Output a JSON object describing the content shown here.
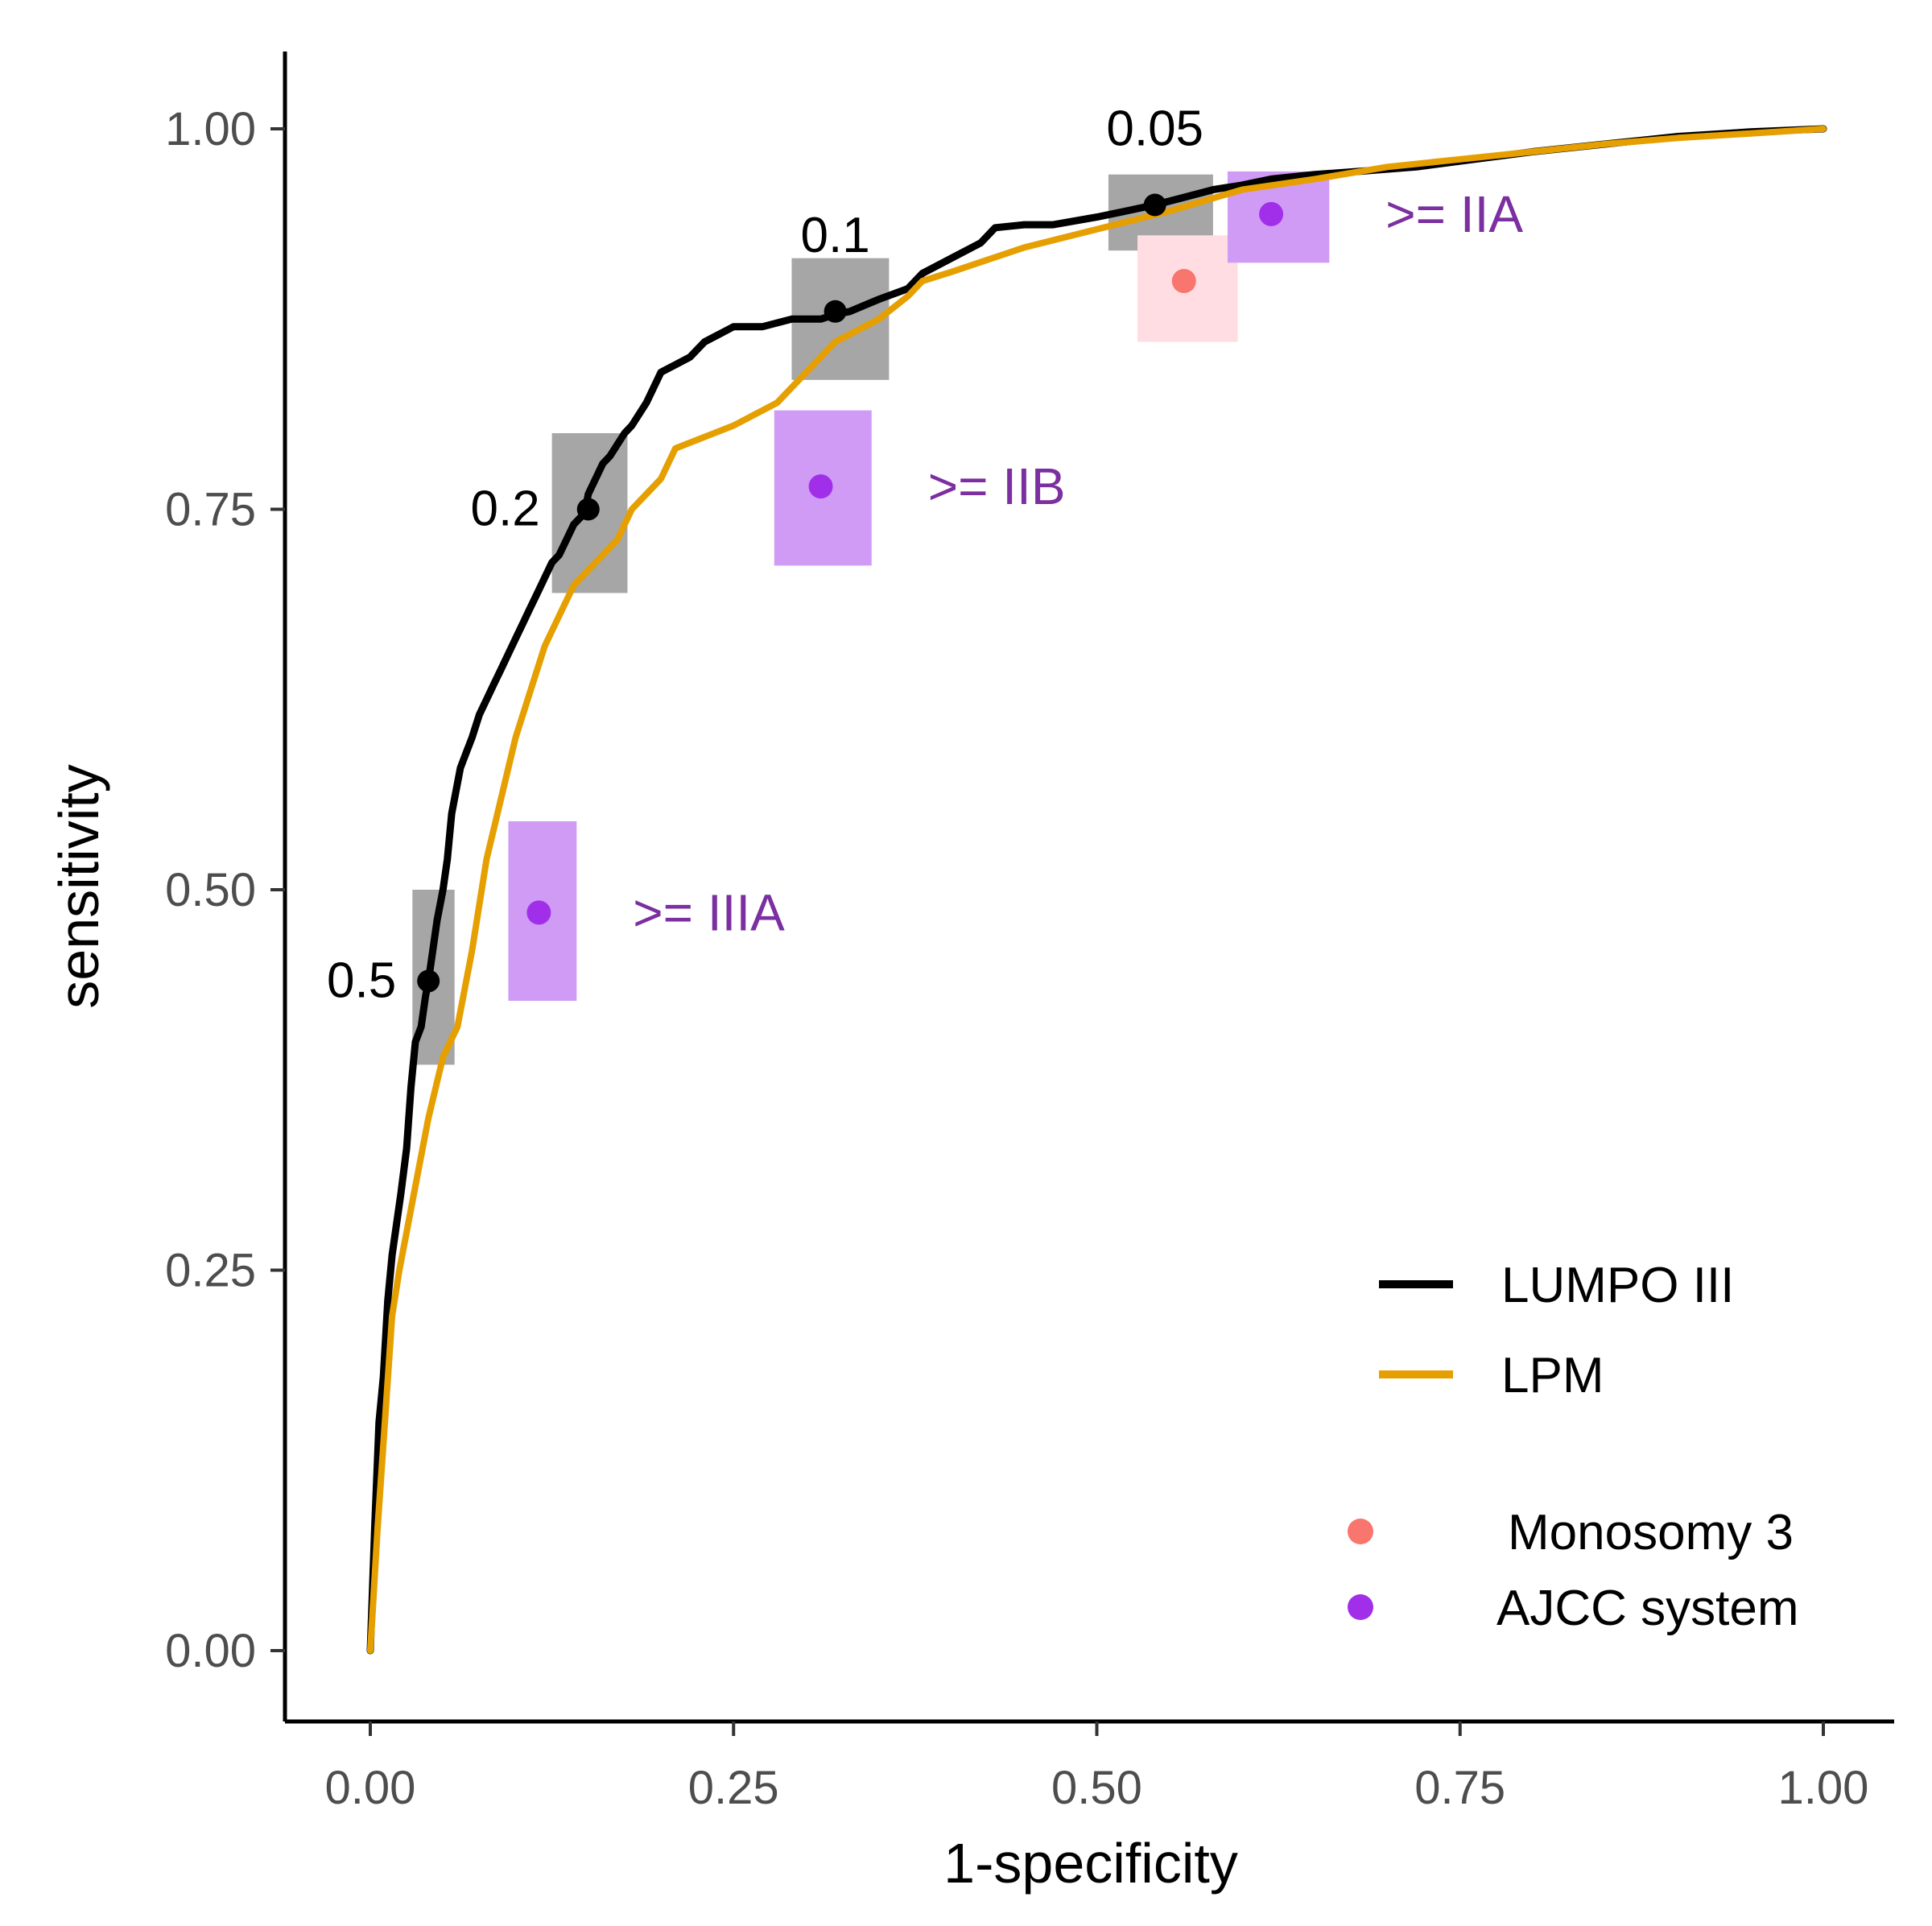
{
  "chart_data": {
    "type": "line",
    "xlabel": "1-specificity",
    "ylabel": "sensitivity",
    "xlim": [
      -0.058,
      1.05
    ],
    "ylim": [
      -0.05,
      1.05
    ],
    "x_ticks": [
      0.0,
      0.25,
      0.5,
      0.75,
      1.0
    ],
    "x_tick_labels": [
      "0.00",
      "0.25",
      "0.50",
      "0.75",
      "1.00"
    ],
    "y_ticks": [
      0.0,
      0.25,
      0.5,
      0.75,
      1.0
    ],
    "y_tick_labels": [
      "0.00",
      "0.25",
      "0.50",
      "0.75",
      "1.00"
    ],
    "colors": {
      "lumpo": "#000000",
      "lpm": "#E69F00",
      "monosomy": "#F8766D",
      "monosomy_box": "#FFDDE3",
      "ajcc": "#A12FEA",
      "ajcc_box": "#D09BF5",
      "ajcc_text": "#7B2FA0",
      "threshold_box": "#A6A6A6"
    },
    "series": [
      {
        "name": "LUMPO III",
        "x": [
          0.0,
          0.003,
          0.006,
          0.009,
          0.012,
          0.015,
          0.018,
          0.021,
          0.025,
          0.028,
          0.031,
          0.035,
          0.038,
          0.04,
          0.043,
          0.046,
          0.05,
          0.053,
          0.056,
          0.06,
          0.062,
          0.066,
          0.07,
          0.075,
          0.08,
          0.085,
          0.09,
          0.095,
          0.1,
          0.105,
          0.11,
          0.115,
          0.12,
          0.125,
          0.13,
          0.135,
          0.14,
          0.145,
          0.148,
          0.15,
          0.155,
          0.16,
          0.165,
          0.175,
          0.18,
          0.19,
          0.2,
          0.21,
          0.22,
          0.23,
          0.24,
          0.25,
          0.27,
          0.29,
          0.31,
          0.32,
          0.33,
          0.35,
          0.37,
          0.38,
          0.4,
          0.42,
          0.43,
          0.45,
          0.47,
          0.5,
          0.52,
          0.54,
          0.56,
          0.58,
          0.6,
          0.62,
          0.65,
          0.68,
          0.72,
          0.76,
          0.8,
          0.85,
          0.9,
          0.95,
          1.0
        ],
        "y": [
          0.0,
          0.08,
          0.15,
          0.18,
          0.23,
          0.26,
          0.28,
          0.3,
          0.33,
          0.37,
          0.4,
          0.41,
          0.43,
          0.44,
          0.46,
          0.48,
          0.5,
          0.52,
          0.55,
          0.57,
          0.58,
          0.59,
          0.6,
          0.615,
          0.625,
          0.635,
          0.645,
          0.655,
          0.665,
          0.675,
          0.685,
          0.695,
          0.705,
          0.715,
          0.72,
          0.73,
          0.74,
          0.745,
          0.75,
          0.76,
          0.77,
          0.78,
          0.785,
          0.8,
          0.805,
          0.82,
          0.84,
          0.845,
          0.85,
          0.86,
          0.865,
          0.87,
          0.87,
          0.875,
          0.875,
          0.878,
          0.88,
          0.888,
          0.895,
          0.905,
          0.915,
          0.925,
          0.935,
          0.937,
          0.937,
          0.942,
          0.946,
          0.95,
          0.955,
          0.96,
          0.963,
          0.967,
          0.97,
          0.972,
          0.975,
          0.98,
          0.985,
          0.99,
          0.995,
          0.998,
          1.0
        ]
      },
      {
        "name": "LPM",
        "x": [
          0.0,
          0.005,
          0.01,
          0.015,
          0.02,
          0.03,
          0.04,
          0.05,
          0.06,
          0.07,
          0.08,
          0.1,
          0.11,
          0.12,
          0.13,
          0.14,
          0.15,
          0.17,
          0.18,
          0.2,
          0.21,
          0.25,
          0.28,
          0.3,
          0.32,
          0.35,
          0.37,
          0.38,
          0.4,
          0.45,
          0.5,
          0.55,
          0.6,
          0.65,
          0.7,
          0.75,
          0.8,
          0.85,
          0.9,
          0.95,
          1.0
        ],
        "y": [
          0.0,
          0.08,
          0.15,
          0.22,
          0.25,
          0.3,
          0.35,
          0.39,
          0.41,
          0.46,
          0.52,
          0.6,
          0.63,
          0.66,
          0.68,
          0.7,
          0.71,
          0.73,
          0.75,
          0.77,
          0.79,
          0.805,
          0.82,
          0.84,
          0.86,
          0.875,
          0.89,
          0.9,
          0.906,
          0.922,
          0.934,
          0.946,
          0.96,
          0.967,
          0.975,
          0.98,
          0.985,
          0.99,
          0.994,
          0.997,
          1.0
        ]
      }
    ],
    "threshold_points": [
      {
        "label": "0.5",
        "x": 0.04,
        "y": 0.44,
        "box_x": [
          0.029,
          0.058
        ],
        "box_y": [
          0.385,
          0.5
        ]
      },
      {
        "label": "0.2",
        "x": 0.15,
        "y": 0.75,
        "box_x": [
          0.125,
          0.177
        ],
        "box_y": [
          0.695,
          0.8
        ]
      },
      {
        "label": "0.1",
        "x": 0.32,
        "y": 0.88,
        "box_x": [
          0.29,
          0.357
        ],
        "box_y": [
          0.835,
          0.915
        ]
      },
      {
        "label": "0.05",
        "x": 0.54,
        "y": 0.95,
        "box_x": [
          0.508,
          0.58
        ],
        "box_y": [
          0.92,
          0.97
        ]
      }
    ],
    "group_points": [
      {
        "name": "Monosomy 3",
        "x": 0.56,
        "y": 0.9,
        "box_x": [
          0.528,
          0.597
        ],
        "box_y": [
          0.86,
          0.93
        ],
        "label": ""
      },
      {
        "name": "AJCC system",
        "x": 0.62,
        "y": 0.944,
        "box_x": [
          0.59,
          0.66
        ],
        "box_y": [
          0.912,
          0.972
        ],
        "label": ">= IIA"
      },
      {
        "name": "AJCC system",
        "x": 0.31,
        "y": 0.765,
        "box_x": [
          0.278,
          0.345
        ],
        "box_y": [
          0.713,
          0.815
        ],
        "label": ">= IIB"
      },
      {
        "name": "AJCC system",
        "x": 0.116,
        "y": 0.485,
        "box_x": [
          0.095,
          0.142
        ],
        "box_y": [
          0.427,
          0.545
        ],
        "label": ">= IIIA"
      }
    ],
    "legend": {
      "lines": [
        {
          "label": "LUMPO III",
          "color_key": "lumpo"
        },
        {
          "label": "LPM",
          "color_key": "lpm"
        }
      ],
      "points": [
        {
          "label": "Monosomy 3",
          "color_key": "monosomy"
        },
        {
          "label": "AJCC system",
          "color_key": "ajcc"
        }
      ],
      "position": "bottom-right"
    }
  }
}
